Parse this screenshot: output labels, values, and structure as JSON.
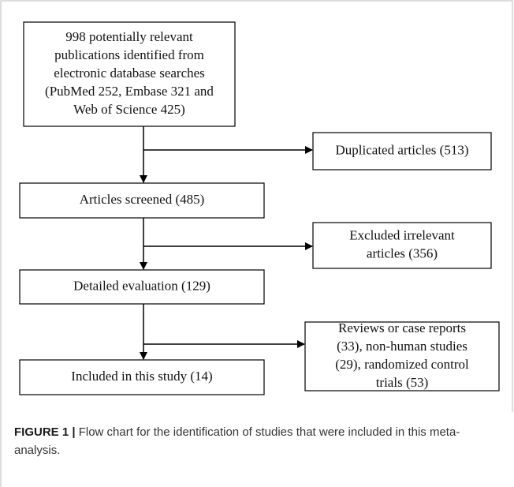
{
  "nodes": [
    {
      "lines": [
        "998 potentially relevant",
        "publications identified from",
        "electronic database searches",
        "(PubMed 252, Embase 321 and",
        "Web of Science 425)"
      ]
    },
    {
      "lines": [
        "Duplicated articles (513)"
      ]
    },
    {
      "lines": [
        "Articles screened (485)"
      ]
    },
    {
      "lines": [
        "Excluded irrelevant",
        "articles (356)"
      ]
    },
    {
      "lines": [
        "Detailed evaluation (129)"
      ]
    },
    {
      "lines": [
        "Reviews or case reports",
        "(33), non-human studies",
        "(29), randomized control",
        "trials (53)"
      ]
    },
    {
      "lines": [
        "Included in this study (14)"
      ]
    }
  ],
  "caption": {
    "label": "FIGURE 1 |",
    "text": "Flow chart for the identification of studies that were included in this meta-analysis."
  }
}
